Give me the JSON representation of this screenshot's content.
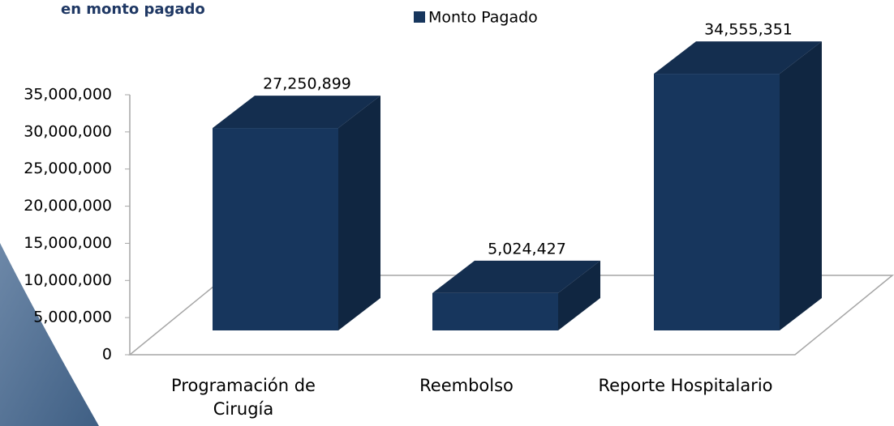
{
  "chart_data": {
    "type": "bar3d",
    "title": "en monto pagado",
    "categories": [
      "Programación de Cirugía",
      "Reembolso",
      "Reporte Hospitalario"
    ],
    "series": [
      {
        "name": "Monto Pagado",
        "color": "#17365d",
        "values": [
          27250899,
          5024427,
          34555351
        ],
        "value_labels": [
          "27,250,899",
          "5,024,427",
          "34,555,351"
        ]
      }
    ],
    "ylim": [
      0,
      35000000
    ],
    "yticks": [
      {
        "value": 0,
        "label": "0"
      },
      {
        "value": 5000000,
        "label": "5,000,000"
      },
      {
        "value": 10000000,
        "label": "10,000,000"
      },
      {
        "value": 15000000,
        "label": "15,000,000"
      },
      {
        "value": 20000000,
        "label": "20,000,000"
      },
      {
        "value": 25000000,
        "label": "25,000,000"
      },
      {
        "value": 30000000,
        "label": "30,000,000"
      },
      {
        "value": 35000000,
        "label": "35,000,000"
      }
    ],
    "legend": "top"
  }
}
